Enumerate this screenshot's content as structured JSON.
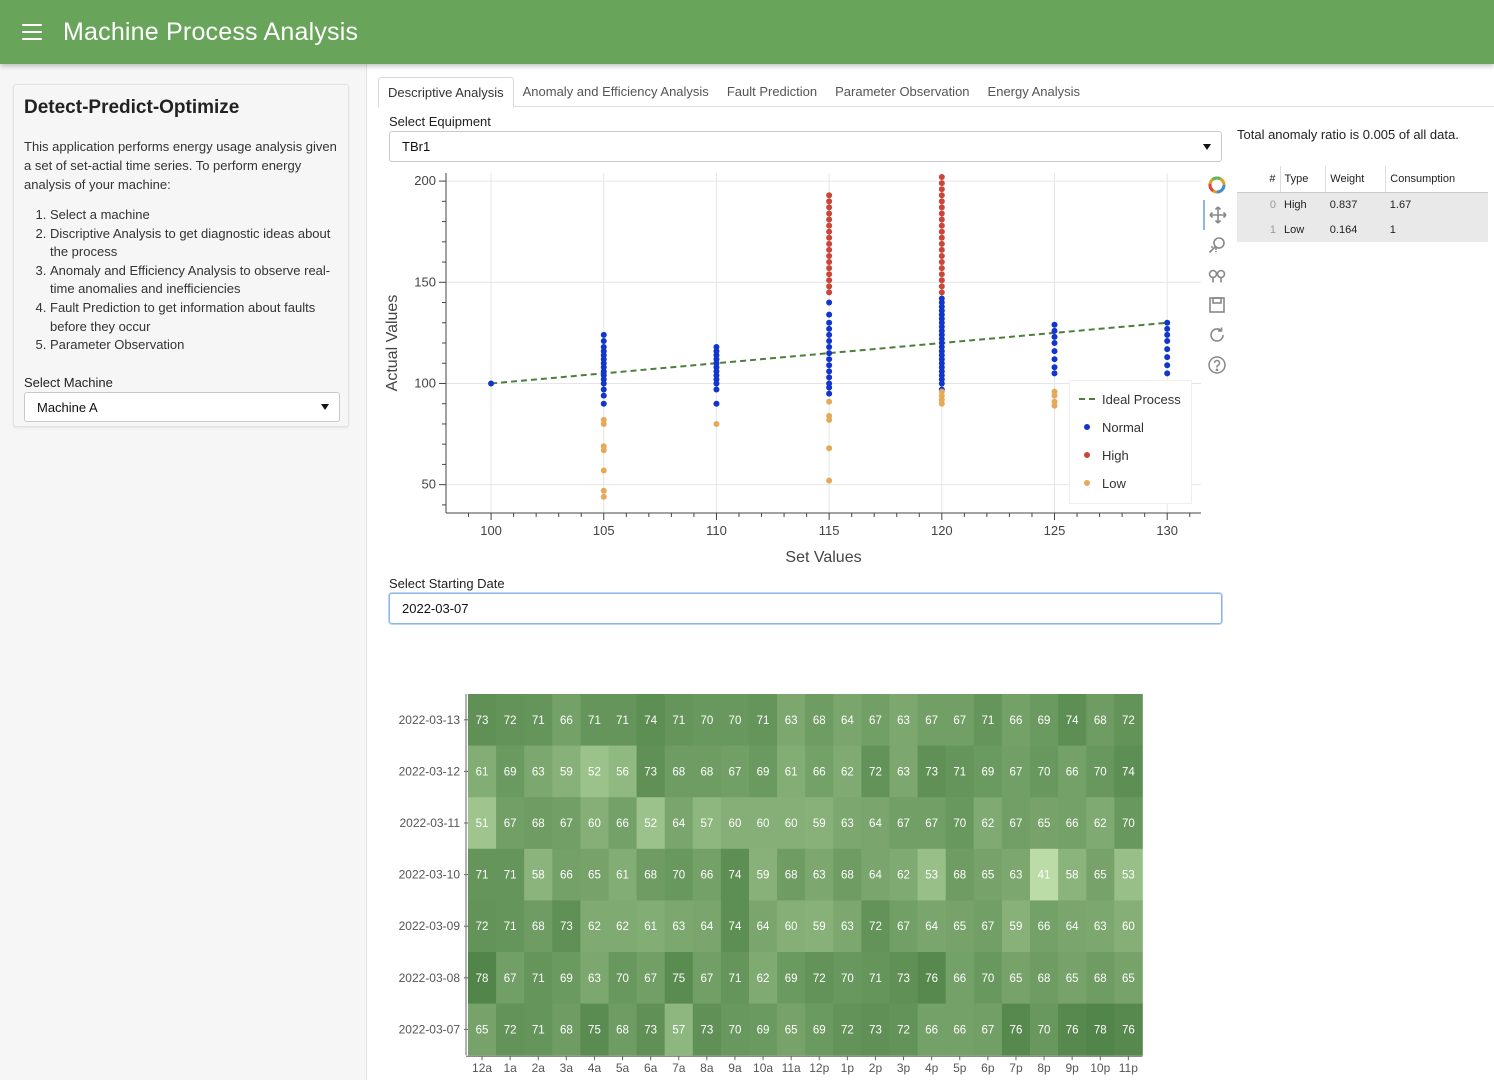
{
  "header": {
    "title": "Machine Process Analysis"
  },
  "sidebar": {
    "heading": "Detect-Predict-Optimize",
    "description": "This application performs energy usage analysis given a set of set-actial time series. To perform energy analysis of your machine:",
    "steps": [
      "Select a machine",
      "Discriptive Analysis to get diagnostic ideas about the process",
      "Anomaly and Efficiency Analysis to observe real-time anomalies and inefficiencies",
      "Fault Prediction to get information about faults before they occur",
      "Parameter Observation"
    ],
    "machine_label": "Select Machine",
    "machine_value": "Machine A"
  },
  "tabs": [
    "Descriptive Analysis",
    "Anomaly and Efficiency Analysis",
    "Fault Prediction",
    "Parameter Observation",
    "Energy Analysis"
  ],
  "equipment": {
    "label": "Select Equipment",
    "value": "TBr1"
  },
  "date": {
    "label": "Select Starting Date",
    "value": "2022-03-07"
  },
  "summary": {
    "ratio_text": "Total anomaly ratio is 0.005 of all data.",
    "columns": [
      "#",
      "Type",
      "Weight",
      "Consumption"
    ],
    "rows": [
      {
        "idx": "0",
        "type": "High",
        "weight": "0.837",
        "consumption": "1.67"
      },
      {
        "idx": "1",
        "type": "Low",
        "weight": "0.164",
        "consumption": "1"
      }
    ]
  },
  "toolbar_icons": [
    "bokeh-logo-icon",
    "pan-icon",
    "box-zoom-icon",
    "wheel-zoom-icon",
    "save-icon",
    "reset-icon",
    "help-icon"
  ],
  "legend": {
    "ideal": "Ideal Process",
    "normal": "Normal",
    "high": "High",
    "low": "Low"
  },
  "colors": {
    "header": "#68a55a",
    "normal": "#1235cc",
    "high": "#c8463a",
    "low": "#e6a95a",
    "ideal": "#4e7f3a"
  },
  "chart_data": [
    {
      "type": "scatter",
      "title": "",
      "xlabel": "Set Values",
      "ylabel": "Actual Values",
      "xlim": [
        98,
        131.5
      ],
      "ylim": [
        36,
        204
      ],
      "xticks": [
        100,
        105,
        110,
        115,
        120,
        125,
        130
      ],
      "yticks": [
        50,
        100,
        150,
        200
      ],
      "grid": true,
      "legend_position": "bottom-right",
      "ideal_line": {
        "name": "Ideal Process",
        "x": [
          100,
          130
        ],
        "y": [
          100,
          130
        ]
      },
      "series": [
        {
          "name": "Normal",
          "points": [
            [
              100,
              100
            ],
            [
              105,
              90
            ],
            [
              105,
              94
            ],
            [
              105,
              97
            ],
            [
              105,
              100
            ],
            [
              105,
              102
            ],
            [
              105,
              104
            ],
            [
              105,
              106
            ],
            [
              105,
              108
            ],
            [
              105,
              110
            ],
            [
              105,
              112
            ],
            [
              105,
              114
            ],
            [
              105,
              116
            ],
            [
              105,
              118
            ],
            [
              105,
              121
            ],
            [
              105,
              124
            ],
            [
              110,
              90
            ],
            [
              110,
              97
            ],
            [
              110,
              100
            ],
            [
              110,
              102
            ],
            [
              110,
              104
            ],
            [
              110,
              106
            ],
            [
              110,
              108
            ],
            [
              110,
              110
            ],
            [
              110,
              112
            ],
            [
              110,
              114
            ],
            [
              110,
              116
            ],
            [
              110,
              118
            ],
            [
              115,
              95
            ],
            [
              115,
              98
            ],
            [
              115,
              100
            ],
            [
              115,
              103
            ],
            [
              115,
              106
            ],
            [
              115,
              109
            ],
            [
              115,
              112
            ],
            [
              115,
              115
            ],
            [
              115,
              118
            ],
            [
              115,
              121
            ],
            [
              115,
              124
            ],
            [
              115,
              127
            ],
            [
              115,
              130
            ],
            [
              115,
              134
            ],
            [
              115,
              140
            ],
            [
              120,
              97
            ],
            [
              120,
              100
            ],
            [
              120,
              102
            ],
            [
              120,
              104
            ],
            [
              120,
              106
            ],
            [
              120,
              108
            ],
            [
              120,
              110
            ],
            [
              120,
              112
            ],
            [
              120,
              114
            ],
            [
              120,
              116
            ],
            [
              120,
              118
            ],
            [
              120,
              120
            ],
            [
              120,
              122
            ],
            [
              120,
              124
            ],
            [
              120,
              126
            ],
            [
              120,
              128
            ],
            [
              120,
              130
            ],
            [
              120,
              132
            ],
            [
              120,
              134
            ],
            [
              120,
              136
            ],
            [
              120,
              138
            ],
            [
              120,
              140
            ],
            [
              120,
              142
            ],
            [
              125,
              105
            ],
            [
              125,
              108
            ],
            [
              125,
              112
            ],
            [
              125,
              116
            ],
            [
              125,
              120
            ],
            [
              125,
              123
            ],
            [
              125,
              126
            ],
            [
              125,
              129
            ],
            [
              130,
              105
            ],
            [
              130,
              109
            ],
            [
              130,
              113
            ],
            [
              130,
              117
            ],
            [
              130,
              121
            ],
            [
              130,
              124
            ],
            [
              130,
              127
            ],
            [
              130,
              130
            ]
          ]
        },
        {
          "name": "High",
          "points": [
            [
              115,
              145
            ],
            [
              115,
              148
            ],
            [
              115,
              151
            ],
            [
              115,
              154
            ],
            [
              115,
              157
            ],
            [
              115,
              160
            ],
            [
              115,
              163
            ],
            [
              115,
              166
            ],
            [
              115,
              169
            ],
            [
              115,
              172
            ],
            [
              115,
              175
            ],
            [
              115,
              178
            ],
            [
              115,
              181
            ],
            [
              115,
              184
            ],
            [
              115,
              187
            ],
            [
              115,
              190
            ],
            [
              115,
              193
            ],
            [
              120,
              145
            ],
            [
              120,
              148
            ],
            [
              120,
              151
            ],
            [
              120,
              154
            ],
            [
              120,
              157
            ],
            [
              120,
              160
            ],
            [
              120,
              163
            ],
            [
              120,
              166
            ],
            [
              120,
              169
            ],
            [
              120,
              172
            ],
            [
              120,
              175
            ],
            [
              120,
              178
            ],
            [
              120,
              181
            ],
            [
              120,
              184
            ],
            [
              120,
              187
            ],
            [
              120,
              190
            ],
            [
              120,
              193
            ],
            [
              120,
              196
            ],
            [
              120,
              199
            ],
            [
              120,
              202
            ]
          ]
        },
        {
          "name": "Low",
          "points": [
            [
              105,
              44
            ],
            [
              105,
              47
            ],
            [
              105,
              57
            ],
            [
              105,
              67
            ],
            [
              105,
              69
            ],
            [
              105,
              80
            ],
            [
              105,
              82
            ],
            [
              110,
              80
            ],
            [
              115,
              52
            ],
            [
              115,
              68
            ],
            [
              115,
              82
            ],
            [
              115,
              84
            ],
            [
              115,
              91
            ],
            [
              120,
              90
            ],
            [
              120,
              92
            ],
            [
              120,
              94
            ],
            [
              120,
              96
            ],
            [
              125,
              89
            ],
            [
              125,
              91
            ],
            [
              125,
              94
            ],
            [
              125,
              96
            ]
          ]
        }
      ]
    },
    {
      "type": "heatmap",
      "title": "",
      "x": [
        "12a",
        "1a",
        "2a",
        "3a",
        "4a",
        "5a",
        "6a",
        "7a",
        "8a",
        "9a",
        "10a",
        "11a",
        "12p",
        "1p",
        "2p",
        "3p",
        "4p",
        "5p",
        "6p",
        "7p",
        "8p",
        "9p",
        "10p",
        "11p"
      ],
      "y": [
        "2022-03-13",
        "2022-03-12",
        "2022-03-11",
        "2022-03-10",
        "2022-03-09",
        "2022-03-08",
        "2022-03-07"
      ],
      "values": [
        [
          73,
          72,
          71,
          66,
          71,
          71,
          74,
          71,
          70,
          70,
          71,
          63,
          68,
          64,
          67,
          63,
          67,
          67,
          71,
          66,
          69,
          74,
          68,
          72
        ],
        [
          61,
          69,
          63,
          59,
          52,
          56,
          73,
          68,
          68,
          67,
          69,
          61,
          66,
          62,
          72,
          63,
          73,
          71,
          69,
          67,
          70,
          66,
          70,
          74
        ],
        [
          51,
          67,
          68,
          67,
          60,
          66,
          52,
          64,
          57,
          60,
          60,
          60,
          59,
          63,
          64,
          67,
          67,
          70,
          62,
          67,
          65,
          66,
          62,
          70
        ],
        [
          71,
          71,
          58,
          66,
          65,
          61,
          68,
          70,
          66,
          74,
          59,
          68,
          63,
          68,
          64,
          62,
          53,
          68,
          65,
          63,
          41,
          58,
          65,
          53
        ],
        [
          72,
          71,
          68,
          73,
          62,
          62,
          61,
          63,
          64,
          74,
          64,
          60,
          59,
          63,
          72,
          67,
          64,
          65,
          67,
          59,
          66,
          64,
          63,
          60
        ],
        [
          78,
          67,
          71,
          69,
          63,
          70,
          67,
          75,
          67,
          71,
          62,
          69,
          72,
          70,
          71,
          73,
          76,
          66,
          70,
          65,
          68,
          65,
          68,
          65
        ],
        [
          65,
          72,
          71,
          68,
          75,
          68,
          73,
          57,
          73,
          70,
          69,
          65,
          69,
          72,
          73,
          72,
          66,
          66,
          67,
          76,
          70,
          76,
          78,
          76
        ]
      ]
    }
  ]
}
